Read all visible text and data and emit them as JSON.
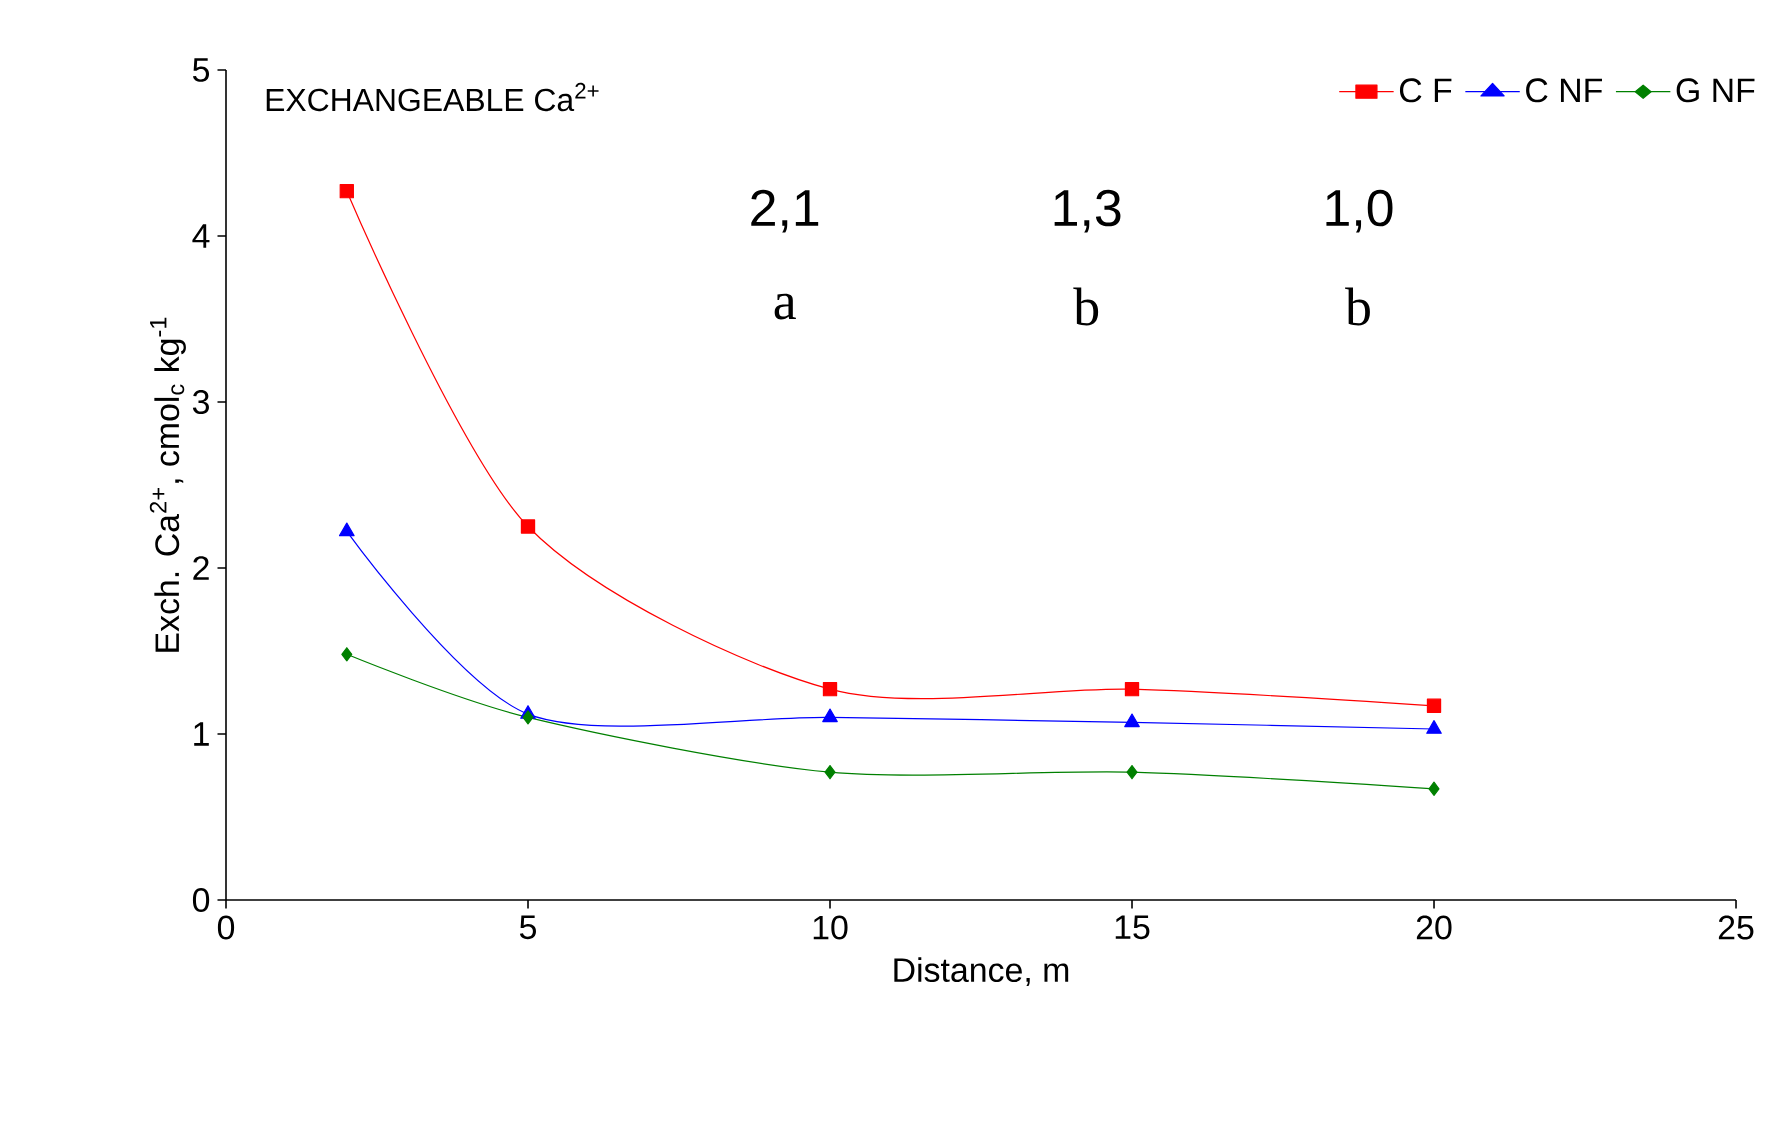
{
  "chart_data": {
    "type": "line",
    "title": "EXCHANGEABLE Ca$^{2+}$",
    "xlabel": "Distance, m",
    "ylabel": "Exch. Ca$^{2+}$, cmol$_{c}$ kg$^{-1}$",
    "x": [
      2,
      5,
      10,
      15,
      20
    ],
    "series": [
      {
        "name": "C F",
        "color": "#ff0000",
        "marker": "square",
        "values": [
          4.27,
          2.25,
          1.27,
          1.27,
          1.17
        ]
      },
      {
        "name": "C NF",
        "color": "#0000ff",
        "marker": "triangle",
        "values": [
          2.22,
          1.12,
          1.1,
          1.07,
          1.03
        ]
      },
      {
        "name": "G NF",
        "color": "#008000",
        "marker": "diamond",
        "values": [
          1.48,
          1.1,
          0.77,
          0.77,
          0.67
        ]
      }
    ],
    "annotations": [
      "2,1",
      "1,3",
      "1,0",
      "a",
      "b",
      "b"
    ],
    "xlim": [
      0,
      25
    ],
    "xticks": [
      0,
      5,
      10,
      15,
      20,
      25
    ],
    "ylim": [
      0,
      5
    ],
    "yticks": [
      0,
      1,
      2,
      3,
      4,
      5
    ],
    "grid": false,
    "legend": "top right",
    "line_style": "solid"
  }
}
